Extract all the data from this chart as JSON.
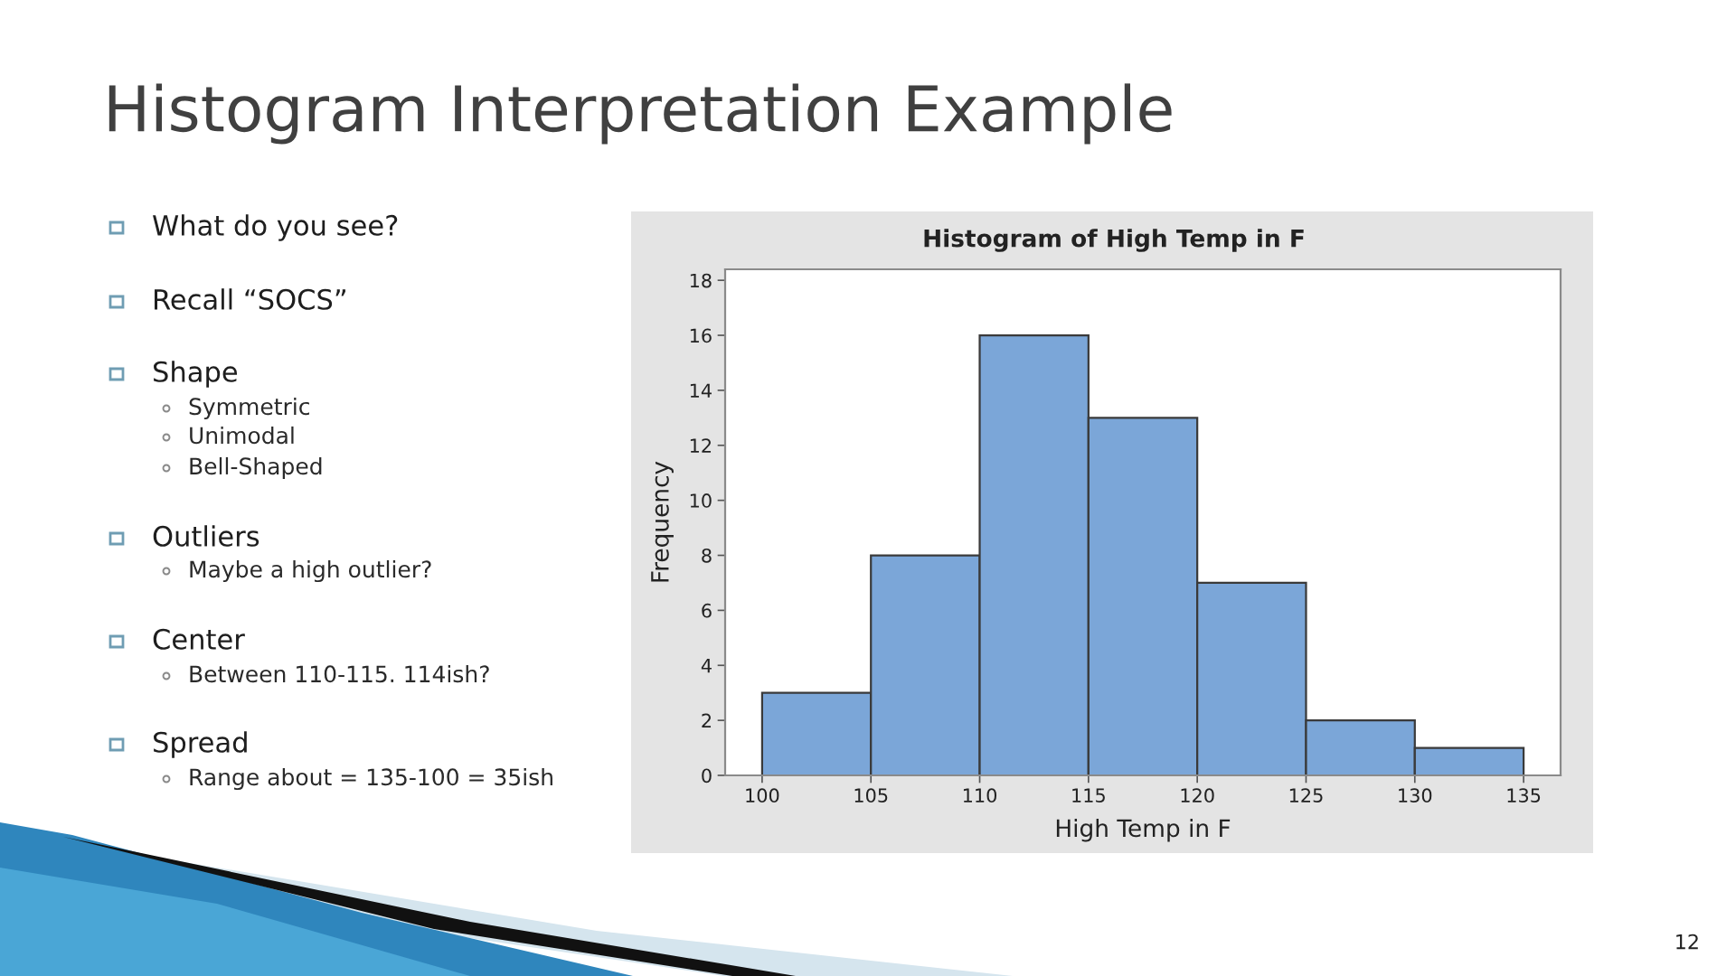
{
  "chart_data": {
    "type": "histogram",
    "title": "Histogram Interpretation Example",
    "subtitle": "Histogram of High Temp in F",
    "xlabel": "High Temp in F",
    "ylabel": "Frequency",
    "bins": [
      100,
      105,
      110,
      115,
      120,
      125,
      130,
      135
    ],
    "values": [
      3,
      8,
      16,
      13,
      7,
      2,
      1
    ],
    "color": "#7ba6d8",
    "xlim": [
      98.3,
      136.7
    ],
    "xticks": [
      100,
      105,
      110,
      115,
      120,
      125,
      130,
      135
    ],
    "ylim": [
      0,
      18.4
    ],
    "yticks": [
      0,
      2,
      4,
      6,
      8,
      10,
      12,
      14,
      16,
      18
    ],
    "annotations": [
      "What do you see?",
      "Recall “SOCS”",
      "Shape",
      "Symmetric",
      "Unimodal",
      "Bell-Shaped",
      "Outliers",
      "Maybe a high outlier?",
      "Center",
      "Between 110-115. 114ish?",
      "Spread",
      "Range about = 135-100 = 35ish",
      "12"
    ]
  }
}
